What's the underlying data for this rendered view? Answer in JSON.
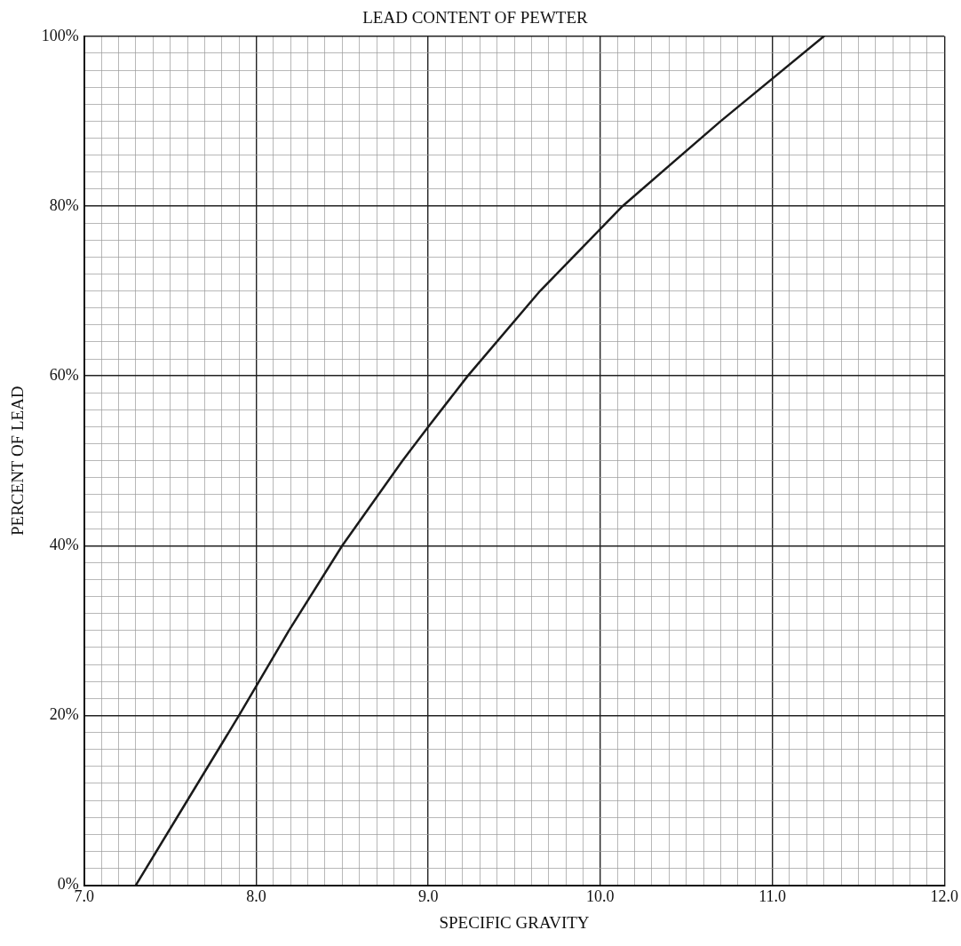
{
  "chart_data": {
    "type": "line",
    "title": "LEAD CONTENT OF PEWTER",
    "xlabel": "SPECIFIC GRAVITY",
    "ylabel": "PERCENT OF LEAD",
    "series": [
      {
        "color": "#1a1a1a",
        "x": [
          7.3,
          7.6,
          7.9,
          8.19,
          8.5,
          8.85,
          9.0,
          9.23,
          9.65,
          10.13,
          10.7,
          11.3
        ],
        "values": [
          0,
          10,
          20,
          30,
          40,
          50,
          54,
          60,
          70,
          80,
          90,
          100
        ]
      }
    ],
    "xlim": [
      7.0,
      12.0
    ],
    "ylim": [
      0,
      100
    ],
    "xticks": [
      {
        "value": 7.0,
        "label": "7.0"
      },
      {
        "value": 7.1,
        "label": null
      },
      {
        "value": 7.2,
        "label": null
      },
      {
        "value": 7.3,
        "label": null
      },
      {
        "value": 7.4,
        "label": null
      },
      {
        "value": 7.5,
        "label": null
      },
      {
        "value": 7.6,
        "label": null
      },
      {
        "value": 7.7,
        "label": null
      },
      {
        "value": 7.8,
        "label": null
      },
      {
        "value": 7.9,
        "label": null
      },
      {
        "value": 8.0,
        "label": "8.0"
      },
      {
        "value": 8.1,
        "label": null
      },
      {
        "value": 8.2,
        "label": null
      },
      {
        "value": 8.3,
        "label": null
      },
      {
        "value": 8.4,
        "label": null
      },
      {
        "value": 8.5,
        "label": null
      },
      {
        "value": 8.6,
        "label": null
      },
      {
        "value": 8.7,
        "label": null
      },
      {
        "value": 8.8,
        "label": null
      },
      {
        "value": 8.9,
        "label": null
      },
      {
        "value": 9.0,
        "label": "9.0"
      },
      {
        "value": 9.1,
        "label": null
      },
      {
        "value": 9.2,
        "label": null
      },
      {
        "value": 9.3,
        "label": null
      },
      {
        "value": 9.4,
        "label": null
      },
      {
        "value": 9.5,
        "label": null
      },
      {
        "value": 9.6,
        "label": null
      },
      {
        "value": 9.7,
        "label": null
      },
      {
        "value": 9.8,
        "label": null
      },
      {
        "value": 9.9,
        "label": null
      },
      {
        "value": 10.0,
        "label": "10.0"
      },
      {
        "value": 10.1,
        "label": null
      },
      {
        "value": 10.2,
        "label": null
      },
      {
        "value": 10.3,
        "label": null
      },
      {
        "value": 10.4,
        "label": null
      },
      {
        "value": 10.5,
        "label": null
      },
      {
        "value": 10.6,
        "label": null
      },
      {
        "value": 10.7,
        "label": null
      },
      {
        "value": 10.8,
        "label": null
      },
      {
        "value": 10.9,
        "label": null
      },
      {
        "value": 11.0,
        "label": "11.0"
      },
      {
        "value": 11.1,
        "label": null
      },
      {
        "value": 11.2,
        "label": null
      },
      {
        "value": 11.3,
        "label": null
      },
      {
        "value": 11.4,
        "label": null
      },
      {
        "value": 11.5,
        "label": null
      },
      {
        "value": 11.6,
        "label": null
      },
      {
        "value": 11.7,
        "label": null
      },
      {
        "value": 11.8,
        "label": null
      },
      {
        "value": 11.9,
        "label": null
      },
      {
        "value": 12.0,
        "label": "12.0"
      }
    ],
    "yticks": [
      {
        "value": 0,
        "label": "0%"
      },
      {
        "value": 2,
        "label": null
      },
      {
        "value": 4,
        "label": null
      },
      {
        "value": 6,
        "label": null
      },
      {
        "value": 8,
        "label": null
      },
      {
        "value": 10,
        "label": null
      },
      {
        "value": 12,
        "label": null
      },
      {
        "value": 14,
        "label": null
      },
      {
        "value": 16,
        "label": null
      },
      {
        "value": 18,
        "label": null
      },
      {
        "value": 20,
        "label": "20%"
      },
      {
        "value": 22,
        "label": null
      },
      {
        "value": 24,
        "label": null
      },
      {
        "value": 26,
        "label": null
      },
      {
        "value": 28,
        "label": null
      },
      {
        "value": 30,
        "label": null
      },
      {
        "value": 32,
        "label": null
      },
      {
        "value": 34,
        "label": null
      },
      {
        "value": 36,
        "label": null
      },
      {
        "value": 38,
        "label": null
      },
      {
        "value": 40,
        "label": "40%"
      },
      {
        "value": 42,
        "label": null
      },
      {
        "value": 44,
        "label": null
      },
      {
        "value": 46,
        "label": null
      },
      {
        "value": 48,
        "label": null
      },
      {
        "value": 50,
        "label": null
      },
      {
        "value": 52,
        "label": null
      },
      {
        "value": 54,
        "label": null
      },
      {
        "value": 56,
        "label": null
      },
      {
        "value": 58,
        "label": null
      },
      {
        "value": 60,
        "label": "60%"
      },
      {
        "value": 62,
        "label": null
      },
      {
        "value": 64,
        "label": null
      },
      {
        "value": 66,
        "label": null
      },
      {
        "value": 68,
        "label": null
      },
      {
        "value": 70,
        "label": null
      },
      {
        "value": 72,
        "label": null
      },
      {
        "value": 74,
        "label": null
      },
      {
        "value": 76,
        "label": null
      },
      {
        "value": 78,
        "label": null
      },
      {
        "value": 80,
        "label": "80%"
      },
      {
        "value": 82,
        "label": null
      },
      {
        "value": 84,
        "label": null
      },
      {
        "value": 86,
        "label": null
      },
      {
        "value": 88,
        "label": null
      },
      {
        "value": 90,
        "label": null
      },
      {
        "value": 92,
        "label": null
      },
      {
        "value": 94,
        "label": null
      },
      {
        "value": 96,
        "label": null
      },
      {
        "value": 98,
        "label": null
      },
      {
        "value": 100,
        "label": "100%"
      }
    ],
    "grid": true,
    "legend": false,
    "marker": "none",
    "line_style": "solid"
  }
}
